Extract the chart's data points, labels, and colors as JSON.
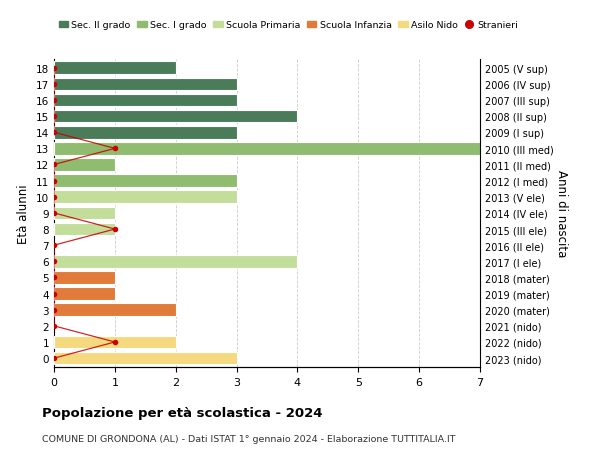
{
  "ages": [
    18,
    17,
    16,
    15,
    14,
    13,
    12,
    11,
    10,
    9,
    8,
    7,
    6,
    5,
    4,
    3,
    2,
    1,
    0
  ],
  "years": [
    "2005 (V sup)",
    "2006 (IV sup)",
    "2007 (III sup)",
    "2008 (II sup)",
    "2009 (I sup)",
    "2010 (III med)",
    "2011 (II med)",
    "2012 (I med)",
    "2013 (V ele)",
    "2014 (IV ele)",
    "2015 (III ele)",
    "2016 (II ele)",
    "2017 (I ele)",
    "2018 (mater)",
    "2019 (mater)",
    "2020 (mater)",
    "2021 (nido)",
    "2022 (nido)",
    "2023 (nido)"
  ],
  "bar_values": [
    2,
    3,
    3,
    4,
    3,
    7,
    1,
    3,
    3,
    1,
    1,
    0,
    4,
    1,
    1,
    2,
    0,
    2,
    3
  ],
  "bar_colors": [
    "#4a7c59",
    "#4a7c59",
    "#4a7c59",
    "#4a7c59",
    "#4a7c59",
    "#8fbc6e",
    "#8fbc6e",
    "#8fbc6e",
    "#c2de9a",
    "#c2de9a",
    "#c2de9a",
    "#c2de9a",
    "#c2de9a",
    "#e07b39",
    "#e07b39",
    "#e07b39",
    "#f5d97e",
    "#f5d97e",
    "#f5d97e"
  ],
  "stranieri_x": [
    0,
    0,
    0,
    0,
    0,
    1,
    0,
    0,
    0,
    0,
    1,
    0,
    0,
    0,
    0,
    0,
    0,
    1,
    0
  ],
  "title_main": "Popolazione per età scolastica - 2024",
  "title_sub": "COMUNE DI GRONDONA (AL) - Dati ISTAT 1° gennaio 2024 - Elaborazione TUTTITALIA.IT",
  "ylabel_left": "Età alunni",
  "ylabel_right": "Anni di nascita",
  "xlim": [
    0,
    7
  ],
  "ylim_low": -0.55,
  "ylim_high": 18.55,
  "legend_labels": [
    "Sec. II grado",
    "Sec. I grado",
    "Scuola Primaria",
    "Scuola Infanzia",
    "Asilo Nido",
    "Stranieri"
  ],
  "legend_colors": [
    "#4a7c59",
    "#8fbc6e",
    "#c2de9a",
    "#e07b39",
    "#f5d97e",
    "#cc0000"
  ],
  "color_stranieri": "#cc0000",
  "bg_color": "#ffffff",
  "grid_color": "#cccccc",
  "bar_height": 0.78
}
